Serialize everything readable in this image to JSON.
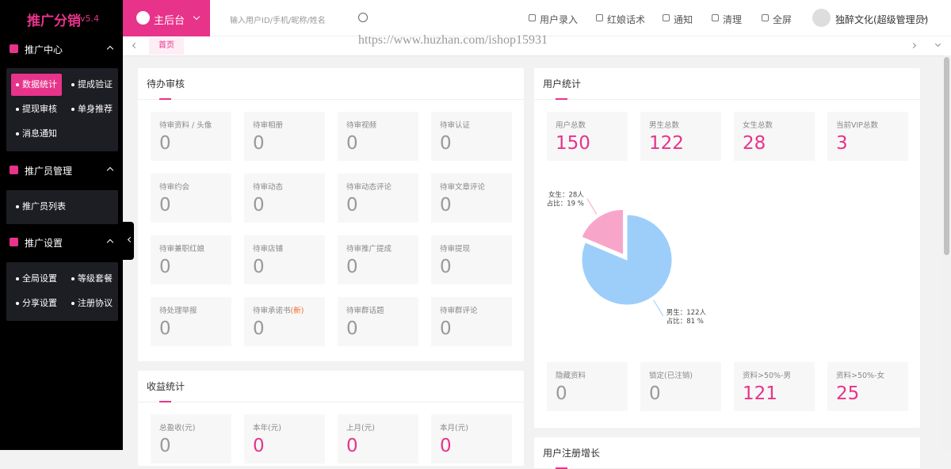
{
  "sidebar": {
    "brand": "推广分销",
    "version": "v5.4",
    "groups": [
      {
        "title": "推广中心",
        "items": [
          "数据统计",
          "提成验证",
          "提现审核",
          "单身推荐",
          "消息通知"
        ]
      },
      {
        "title": "推广员管理",
        "items": [
          "推广员列表"
        ]
      },
      {
        "title": "推广设置",
        "items": [
          "全局设置",
          "等级套餐",
          "分享设置",
          "注册协议"
        ]
      }
    ]
  },
  "topbar": {
    "home": "主后台",
    "search_placeholder": "输入用户ID/手机/昵称/姓名",
    "actions": [
      "用户录入",
      "红娘话术",
      "通知",
      "清理",
      "全屏"
    ],
    "user": "独醉文化(超级管理员)"
  },
  "tabs": [
    "首页"
  ],
  "watermark": "https://www.huzhan.com/ishop15931",
  "pending": {
    "title": "待办审核",
    "cards": [
      {
        "label": "待审资料 / 头像",
        "value": 0
      },
      {
        "label": "待审相册",
        "value": 0
      },
      {
        "label": "待审视频",
        "value": 0
      },
      {
        "label": "待审认证",
        "value": 0
      },
      {
        "label": "待审约会",
        "value": 0
      },
      {
        "label": "待审动态",
        "value": 0
      },
      {
        "label": "待审动态评论",
        "value": 0
      },
      {
        "label": "待审文章评论",
        "value": 0
      },
      {
        "label": "待审兼职红娘",
        "value": 0
      },
      {
        "label": "待审店铺",
        "value": 0
      },
      {
        "label": "待审推广提成",
        "value": 0
      },
      {
        "label": "待审提现",
        "value": 0
      },
      {
        "label": "待处理举报",
        "value": 0
      },
      {
        "label": "待审承诺书",
        "badge": "(新)",
        "value": 0
      },
      {
        "label": "待审群话题",
        "value": 0
      },
      {
        "label": "待审群评论",
        "value": 0
      }
    ]
  },
  "income": {
    "title": "收益统计",
    "cards": [
      {
        "label": "总盈收(元)",
        "value": 0
      },
      {
        "label": "本年(元)",
        "value": 0
      },
      {
        "label": "上月(元)",
        "value": 0
      },
      {
        "label": "本月(元)",
        "value": 0
      }
    ]
  },
  "user_stats": {
    "title": "用户统计",
    "cards": [
      {
        "label": "用户总数",
        "value": 150
      },
      {
        "label": "男生总数",
        "value": 122
      },
      {
        "label": "女生总数",
        "value": 28
      },
      {
        "label": "当前VIP总数",
        "value": 3
      }
    ],
    "pie": {
      "values": [
        122,
        28
      ],
      "colors": [
        "#9dcefa",
        "#f7a6c9"
      ],
      "labels": [
        [
          "男生：122人",
          "占比：81 %"
        ],
        [
          "女生：28人",
          "占比：19 %"
        ]
      ]
    },
    "bottom_cards": [
      {
        "label": "隐藏资料",
        "value": 0
      },
      {
        "label": "锁定(已注销)",
        "value": 0
      },
      {
        "label": "资料>50%-男",
        "value": 121
      },
      {
        "label": "资料>50%-女",
        "value": 25
      }
    ]
  },
  "growth": {
    "title": "用户注册增长"
  }
}
